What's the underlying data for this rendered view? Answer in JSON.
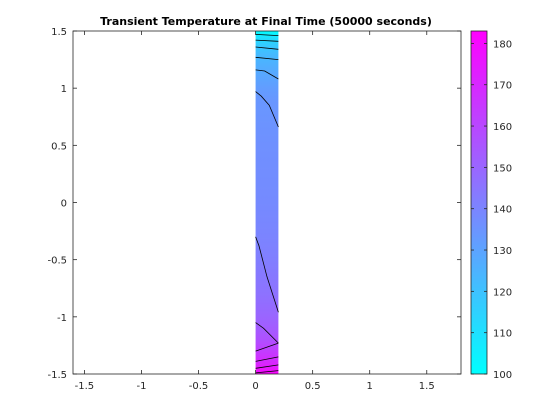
{
  "chart_data": {
    "type": "heatmap",
    "title": "Transient Temperature at Final Time (50000 seconds)",
    "xlabel": "",
    "ylabel": "",
    "xlim": [
      -1.6,
      1.8
    ],
    "ylim": [
      -1.5,
      1.5
    ],
    "x_ticks": [
      -1.5,
      -1,
      -0.5,
      0,
      0.5,
      1,
      1.5
    ],
    "x_tick_labels": [
      "-1.5",
      "-1",
      "-0.5",
      "0",
      "0.5",
      "1",
      "1.5"
    ],
    "y_ticks": [
      -1.5,
      -1,
      -0.5,
      0,
      0.5,
      1,
      1.5
    ],
    "y_tick_labels": [
      "-1.5",
      "-1",
      "-0.5",
      "0",
      "0.5",
      "1",
      "1.5"
    ],
    "colormap": "cool",
    "colormap_colors": [
      "#00ffff",
      "#ff00ff"
    ],
    "domain": {
      "x": [
        0,
        0.2
      ],
      "y": [
        -1.5,
        1.5
      ]
    },
    "colorbar": {
      "limits": [
        100,
        183
      ],
      "ticks": [
        100,
        110,
        120,
        130,
        140,
        150,
        160,
        170,
        180
      ],
      "tick_labels": [
        "100",
        "110",
        "120",
        "130",
        "140",
        "150",
        "160",
        "170",
        "180"
      ]
    },
    "temperature_profile": {
      "y": [
        -1.5,
        -1.45,
        -1.4,
        -1.3,
        -1.2,
        -1.1,
        -1.0,
        -0.8,
        -0.5,
        -0.3,
        0.0,
        0.5,
        0.9,
        1.0,
        1.1,
        1.2,
        1.3,
        1.38,
        1.44,
        1.5
      ],
      "temperature": [
        183,
        175,
        170,
        163,
        157,
        153,
        150,
        146,
        142,
        140,
        138,
        136,
        134,
        132,
        129,
        126,
        122,
        117,
        110,
        100
      ]
    },
    "contour_lines": [
      {
        "points": [
          [
            0,
            -1.49
          ],
          [
            0.2,
            -1.47
          ]
        ]
      },
      {
        "points": [
          [
            0,
            -1.45
          ],
          [
            0.2,
            -1.42
          ]
        ]
      },
      {
        "points": [
          [
            0,
            -1.39
          ],
          [
            0.2,
            -1.35
          ]
        ]
      },
      {
        "points": [
          [
            0,
            -1.3
          ],
          [
            0.2,
            -1.23
          ]
        ]
      },
      {
        "points": [
          [
            0,
            -1.05
          ],
          [
            0.07,
            -1.1
          ],
          [
            0.2,
            -1.23
          ]
        ]
      },
      {
        "points": [
          [
            0,
            -0.3
          ],
          [
            0.03,
            -0.38
          ],
          [
            0.1,
            -0.65
          ],
          [
            0.2,
            -0.96
          ]
        ]
      },
      {
        "points": [
          [
            0,
            0.97
          ],
          [
            0.05,
            0.93
          ],
          [
            0.12,
            0.85
          ],
          [
            0.2,
            0.66
          ]
        ]
      },
      {
        "points": [
          [
            0,
            1.16
          ],
          [
            0.08,
            1.15
          ],
          [
            0.2,
            1.08
          ]
        ]
      },
      {
        "points": [
          [
            0,
            1.27
          ],
          [
            0.2,
            1.25
          ]
        ]
      },
      {
        "points": [
          [
            0,
            1.36
          ],
          [
            0.2,
            1.34
          ]
        ]
      },
      {
        "points": [
          [
            0,
            1.42
          ],
          [
            0.2,
            1.41
          ]
        ]
      },
      {
        "points": [
          [
            0,
            1.47
          ],
          [
            0.2,
            1.46
          ]
        ]
      }
    ]
  }
}
